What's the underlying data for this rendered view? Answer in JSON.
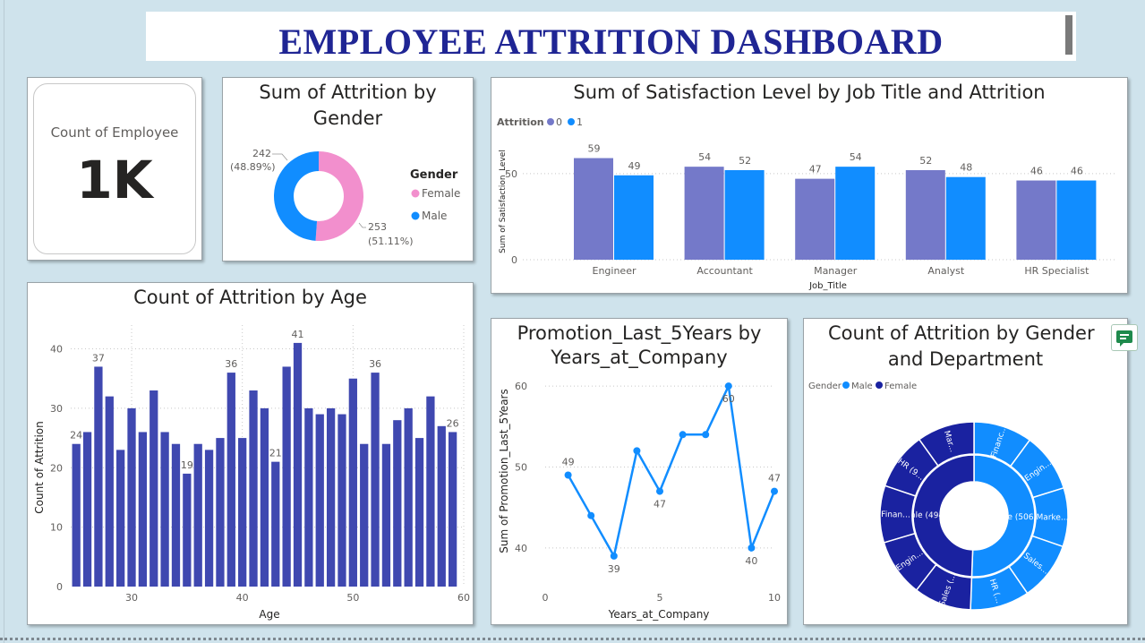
{
  "dashboard": {
    "title": "EMPLOYEE ATTRITION DASHBOARD"
  },
  "kpi": {
    "label": "Count of Employee",
    "value": "1K"
  },
  "colors": {
    "female_pink": "#f28fcd",
    "male_blue": "#118dff",
    "attr0_purple": "#7479c9",
    "attr1_blue": "#118dff",
    "age_bar": "#3f48b0",
    "line_blue": "#118dff",
    "sun_male": "#118dff",
    "sun_female": "#1a22a0"
  },
  "donut": {
    "title_line1": "Sum of Attrition by",
    "title_line2": "Gender",
    "legend_title": "Gender",
    "chart_data": {
      "type": "pie",
      "categories": [
        "Female",
        "Male"
      ],
      "values": [
        253,
        242
      ],
      "labels": [
        {
          "value": "253",
          "pct": "(51.11%)"
        },
        {
          "value": "242",
          "pct": "(48.89%)"
        }
      ]
    }
  },
  "satisfaction": {
    "title": "Sum of Satisfaction Level by Job Title and Attrition",
    "legend_title": "Attrition",
    "chart_data": {
      "type": "bar",
      "categories": [
        "Engineer",
        "Accountant",
        "Manager",
        "Analyst",
        "HR Specialist"
      ],
      "series": [
        {
          "name": "0",
          "values": [
            59,
            54,
            47,
            52,
            46
          ]
        },
        {
          "name": "1",
          "values": [
            49,
            52,
            54,
            48,
            46
          ]
        }
      ],
      "xlabel": "Job_Title",
      "ylabel": "Sum of Satisfaction_Level",
      "yticks": [
        0,
        50
      ],
      "ylim": [
        0,
        65
      ]
    }
  },
  "age": {
    "title": "Count of Attrition by Age",
    "chart_data": {
      "type": "bar",
      "x": [
        25,
        26,
        27,
        28,
        29,
        30,
        31,
        32,
        33,
        34,
        35,
        36,
        37,
        38,
        39,
        40,
        41,
        42,
        43,
        44,
        45,
        46,
        47,
        48,
        49,
        50,
        51,
        52,
        53,
        54,
        55,
        56,
        57,
        58,
        59
      ],
      "values": [
        24,
        26,
        37,
        32,
        23,
        30,
        26,
        33,
        26,
        24,
        19,
        24,
        23,
        25,
        36,
        25,
        33,
        30,
        21,
        37,
        41,
        30,
        29,
        30,
        29,
        35,
        24,
        36,
        24,
        28,
        30,
        25,
        32,
        27,
        26
      ],
      "labeled_points": [
        {
          "x": 25,
          "label": "24"
        },
        {
          "x": 27,
          "label": "37"
        },
        {
          "x": 35,
          "label": "19"
        },
        {
          "x": 39,
          "label": "36"
        },
        {
          "x": 43,
          "label": "21"
        },
        {
          "x": 45,
          "label": "41"
        },
        {
          "x": 52,
          "label": "36"
        },
        {
          "x": 59,
          "label": "26"
        }
      ],
      "xlabel": "Age",
      "ylabel": "Count of Attrition",
      "xticks": [
        30,
        40,
        50,
        60
      ],
      "yticks": [
        0,
        10,
        20,
        30,
        40
      ],
      "xlim": [
        24.5,
        60
      ],
      "ylim": [
        0,
        44
      ]
    }
  },
  "promotion": {
    "title_line1": "Promotion_Last_5Years by",
    "title_line2": "Years_at_Company",
    "chart_data": {
      "type": "line",
      "x": [
        1,
        2,
        3,
        4,
        5,
        6,
        7,
        8,
        9,
        10
      ],
      "values": [
        49,
        44,
        39,
        52,
        47,
        54,
        54,
        60,
        40,
        47
      ],
      "labeled_points": [
        {
          "x": 1,
          "label": "49",
          "pos": "above"
        },
        {
          "x": 3,
          "label": "39",
          "pos": "below"
        },
        {
          "x": 5,
          "label": "47",
          "pos": "below"
        },
        {
          "x": 8,
          "label": "60",
          "pos": "below"
        },
        {
          "x": 9,
          "label": "40",
          "pos": "below"
        },
        {
          "x": 10,
          "label": "47",
          "pos": "above"
        }
      ],
      "xlabel": "Years_at_Company",
      "ylabel": "Sum of Promotion_Last_5Years",
      "xticks": [
        0,
        5,
        10
      ],
      "yticks": [
        40,
        50,
        60
      ],
      "xlim": [
        0,
        10
      ],
      "ylim": [
        36,
        62
      ]
    }
  },
  "sunburst": {
    "title_line1": "Count of Attrition by Gender",
    "title_line2": "and Department",
    "legend_title": "Gender",
    "chart_data": {
      "type": "pie",
      "inner": [
        {
          "name": "Male",
          "value": 506,
          "label": "Male (506,00)"
        },
        {
          "name": "Female",
          "value": 494,
          "label": "Female (494,00)"
        }
      ],
      "outer": [
        {
          "parent": "Male",
          "value": 101,
          "label": "Financ..."
        },
        {
          "parent": "Male",
          "value": 101,
          "label": "Engin..."
        },
        {
          "parent": "Male",
          "value": 101,
          "label": "Marke..."
        },
        {
          "parent": "Male",
          "value": 101,
          "label": "Sales..."
        },
        {
          "parent": "Male",
          "value": 102,
          "label": "HR (..."
        },
        {
          "parent": "Female",
          "value": 99,
          "label": "Sales (..."
        },
        {
          "parent": "Female",
          "value": 99,
          "label": "Engin..."
        },
        {
          "parent": "Female",
          "value": 98,
          "label": "Finan..."
        },
        {
          "parent": "Female",
          "value": 99,
          "label": "HR (9..."
        },
        {
          "parent": "Female",
          "value": 99,
          "label": "Mar..."
        }
      ]
    }
  }
}
